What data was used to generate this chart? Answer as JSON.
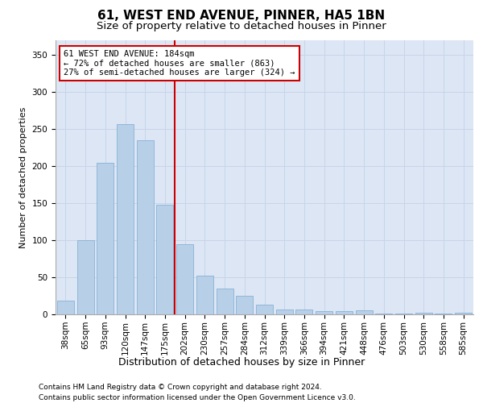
{
  "title": "61, WEST END AVENUE, PINNER, HA5 1BN",
  "subtitle": "Size of property relative to detached houses in Pinner",
  "xlabel": "Distribution of detached houses by size in Pinner",
  "ylabel": "Number of detached properties",
  "categories": [
    "38sqm",
    "65sqm",
    "93sqm",
    "120sqm",
    "147sqm",
    "175sqm",
    "202sqm",
    "230sqm",
    "257sqm",
    "284sqm",
    "312sqm",
    "339sqm",
    "366sqm",
    "394sqm",
    "421sqm",
    "448sqm",
    "476sqm",
    "503sqm",
    "530sqm",
    "558sqm",
    "585sqm"
  ],
  "values": [
    18,
    100,
    205,
    257,
    235,
    148,
    95,
    52,
    35,
    25,
    13,
    7,
    6,
    4,
    4,
    5,
    1,
    1,
    2,
    1,
    2
  ],
  "bar_color": "#b8cfe8",
  "bar_edge_color": "#7aaad0",
  "vline_x": 5.5,
  "vline_color": "#cc0000",
  "annotation_text": "61 WEST END AVENUE: 184sqm\n← 72% of detached houses are smaller (863)\n27% of semi-detached houses are larger (324) →",
  "annotation_box_color": "#ffffff",
  "annotation_box_edge": "#cc0000",
  "ylim": [
    0,
    370
  ],
  "yticks": [
    0,
    50,
    100,
    150,
    200,
    250,
    300,
    350
  ],
  "grid_color": "#c8d4e8",
  "background_color": "#dce6f5",
  "footer": "Contains HM Land Registry data © Crown copyright and database right 2024.\nContains public sector information licensed under the Open Government Licence v3.0.",
  "title_fontsize": 11,
  "subtitle_fontsize": 9.5,
  "xlabel_fontsize": 9,
  "ylabel_fontsize": 8,
  "tick_fontsize": 7.5,
  "footer_fontsize": 6.5,
  "annotation_fontsize": 7.5
}
